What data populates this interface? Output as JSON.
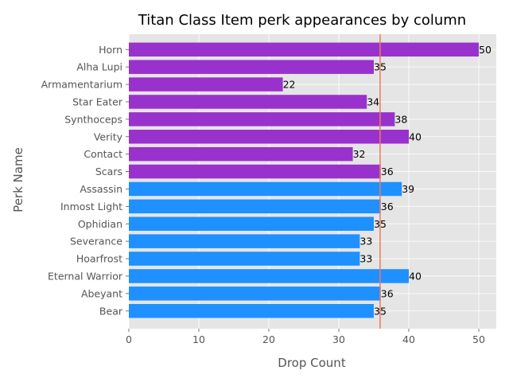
{
  "chart_data": {
    "type": "bar",
    "orientation": "horizontal",
    "title": "Titan Class Item perk appearances by column",
    "xlabel": "Drop Count",
    "ylabel": "Perk Name",
    "xlim": [
      0,
      52.5
    ],
    "xticks": [
      0,
      10,
      20,
      30,
      40,
      50
    ],
    "grid": true,
    "reference_line": {
      "axis": "x",
      "value": 35.9,
      "color": "#ee7a5a"
    },
    "colors": {
      "column_1": "#9932cc",
      "column_2": "#1e90ff",
      "background": "#e5e5e5",
      "grid": "#ffffff"
    },
    "categories": [
      "Horn",
      "Alha Lupi",
      "Armamentarium",
      "Star Eater",
      "Synthoceps",
      "Verity",
      "Contact",
      "Scars",
      "Assassin",
      "Inmost Light",
      "Ophidian",
      "Severance",
      "Hoarfrost",
      "Eternal Warrior",
      "Abeyant",
      "Bear"
    ],
    "values": [
      50,
      35,
      22,
      34,
      38,
      40,
      32,
      36,
      39,
      36,
      35,
      33,
      33,
      40,
      36,
      35
    ],
    "bar_colors": [
      "#9932cc",
      "#9932cc",
      "#9932cc",
      "#9932cc",
      "#9932cc",
      "#9932cc",
      "#9932cc",
      "#9932cc",
      "#1e90ff",
      "#1e90ff",
      "#1e90ff",
      "#1e90ff",
      "#1e90ff",
      "#1e90ff",
      "#1e90ff",
      "#1e90ff"
    ]
  }
}
